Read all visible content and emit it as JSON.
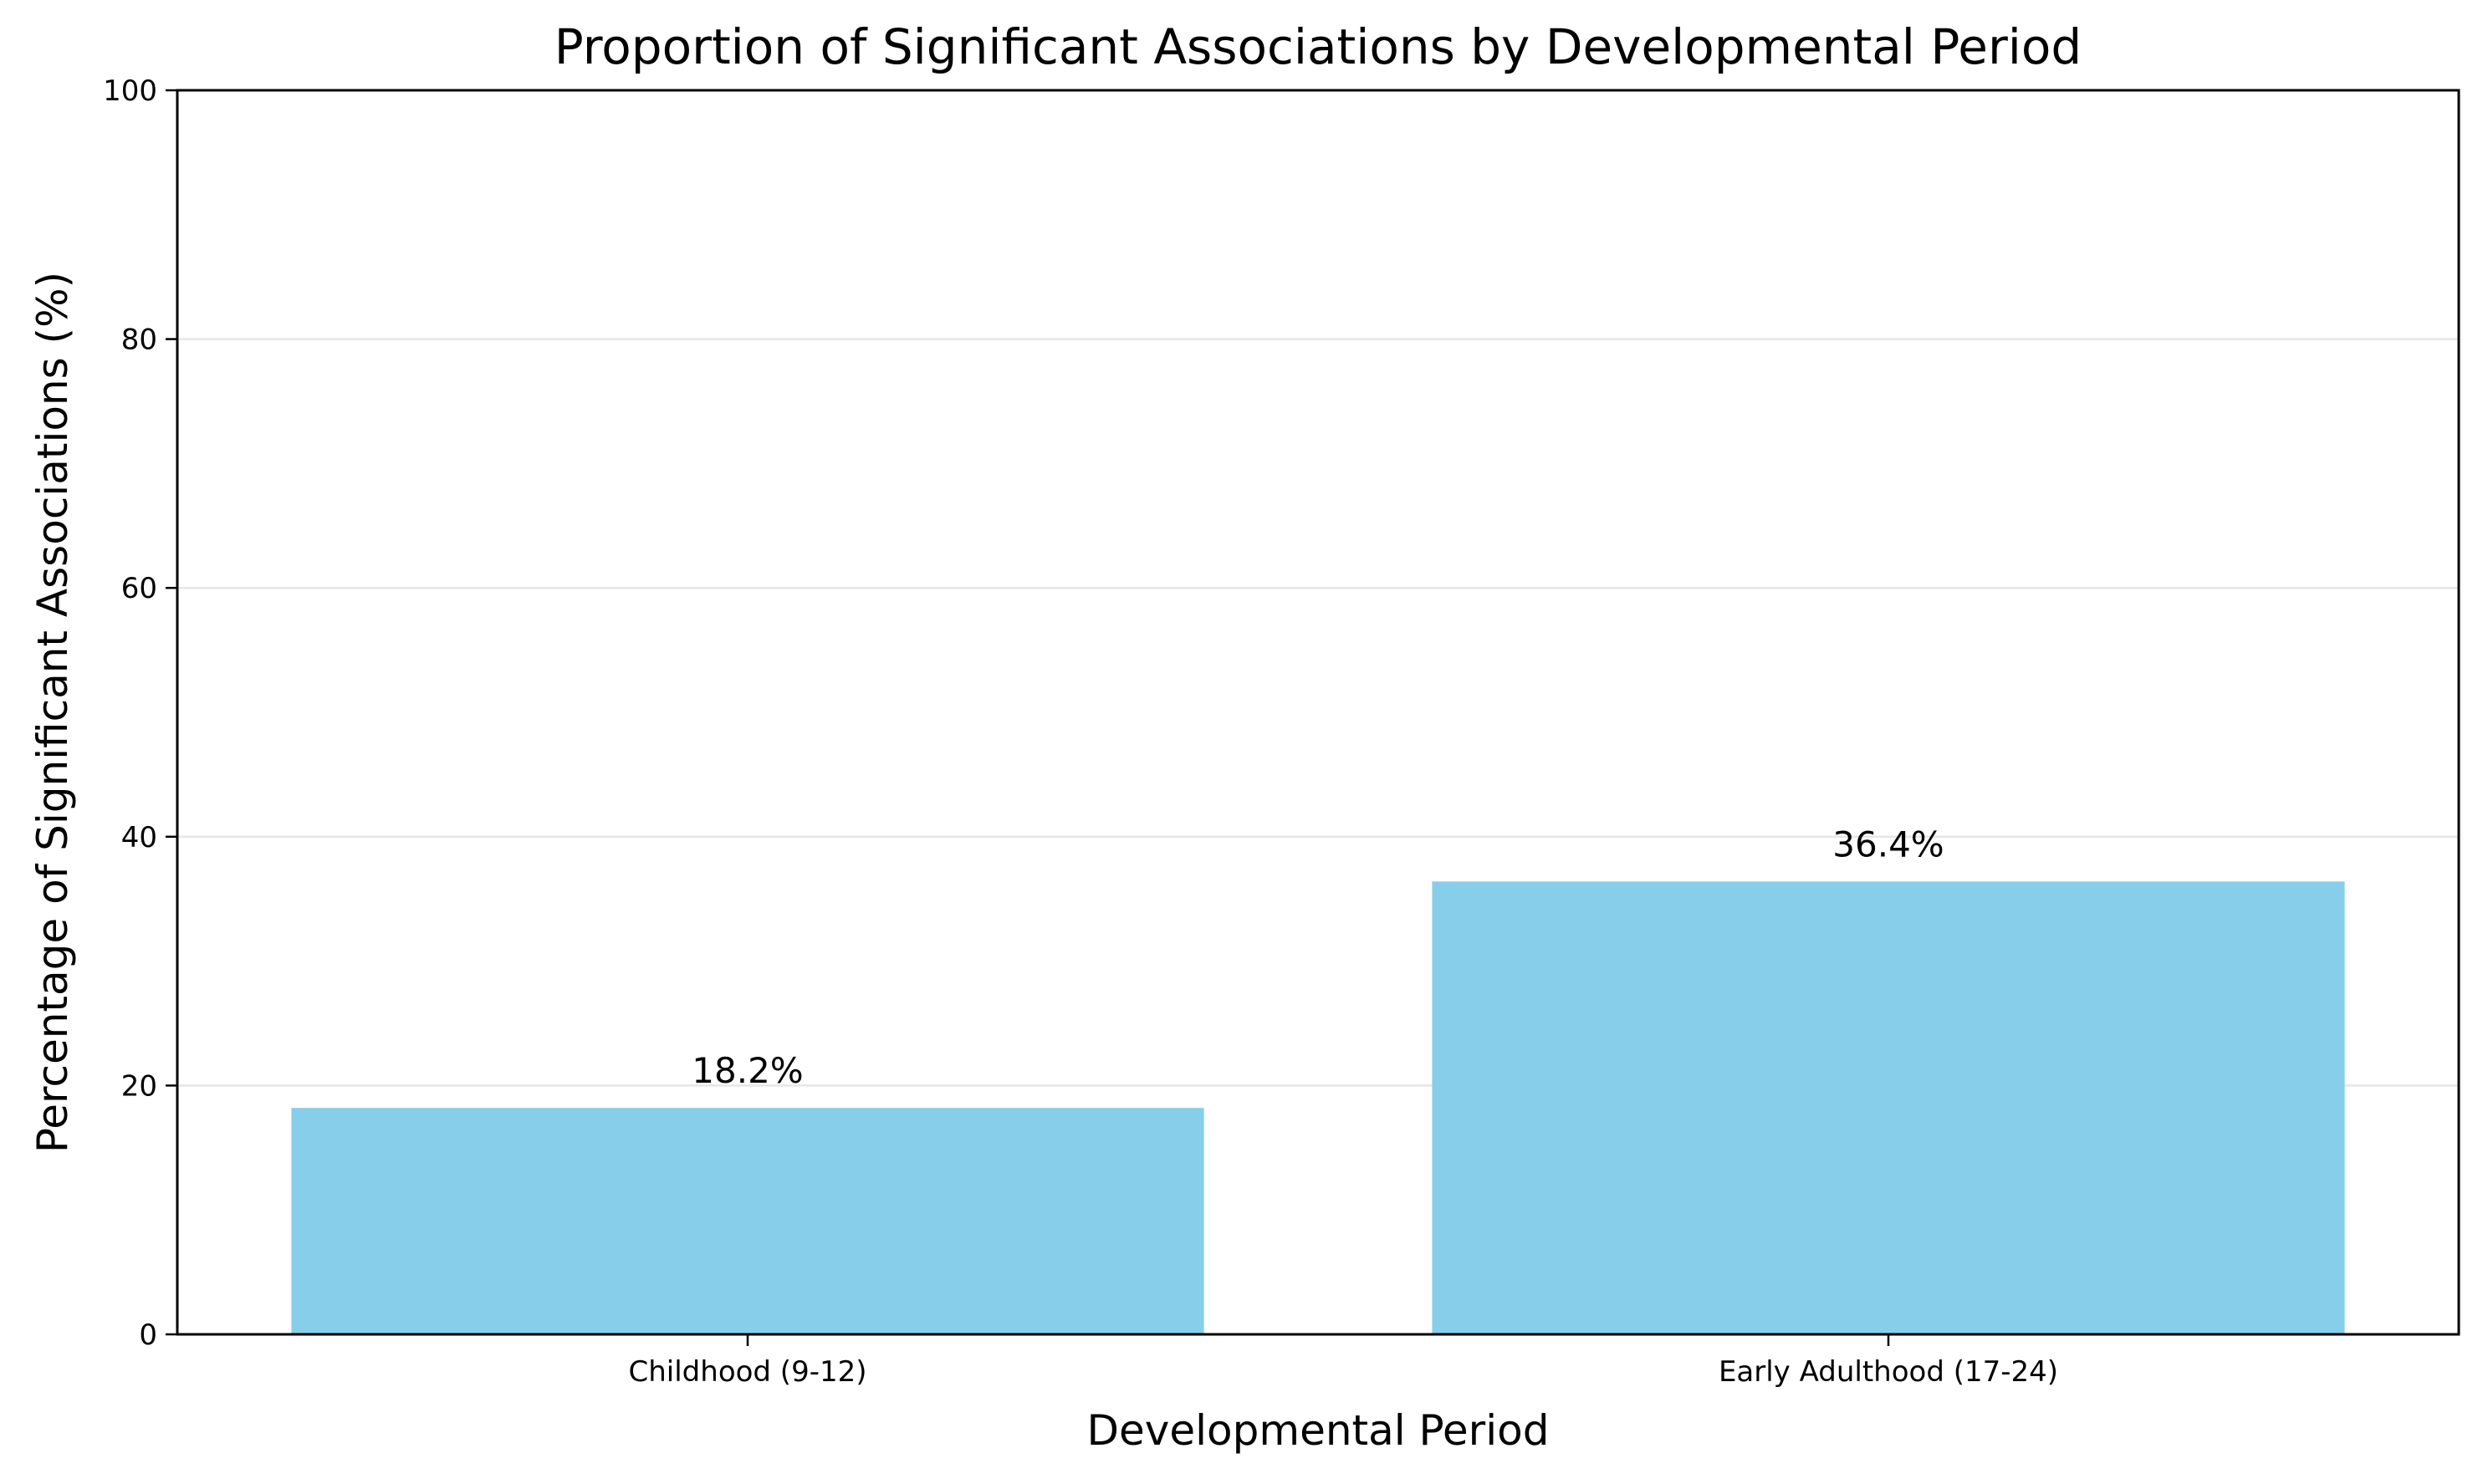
{
  "chart_data": {
    "type": "bar",
    "title": "Proportion of Significant Associations by Developmental Period",
    "xlabel": "Developmental Period",
    "ylabel": "Percentage of Significant Associations (%)",
    "categories": [
      "Childhood (9-12)",
      "Early Adulthood (17-24)"
    ],
    "values": [
      18.2,
      36.4
    ],
    "value_labels": [
      "18.2%",
      "36.4%"
    ],
    "ylim": [
      0,
      100
    ],
    "yticks": [
      0,
      20,
      40,
      60,
      80,
      100
    ],
    "ytick_labels": [
      "0",
      "20",
      "40",
      "60",
      "80",
      "100"
    ],
    "grid": "y",
    "legend": "none",
    "colors": {
      "bar": "#87CEEB",
      "grid": "#e6e6e6",
      "axis": "#000000"
    }
  }
}
